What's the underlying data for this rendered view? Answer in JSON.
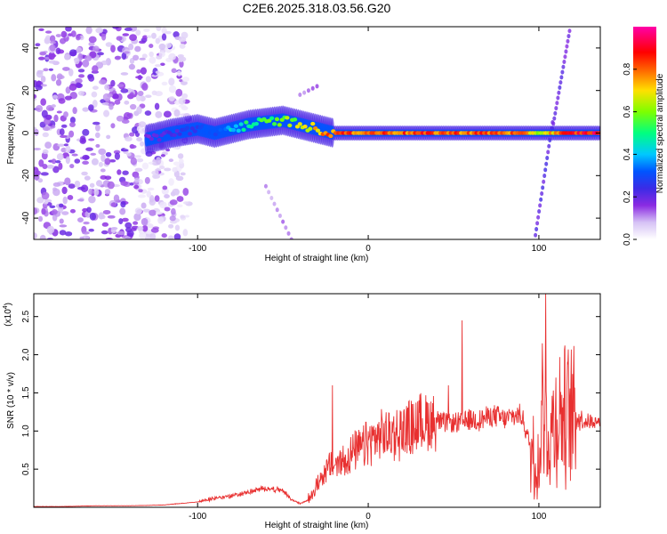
{
  "figure_title": "C2E6.2025.318.03.56.G20",
  "chart_data": [
    {
      "type": "heatmap",
      "title": "C2E6.2025.318.03.56.G20",
      "xlabel": "Height of straight line (km)",
      "ylabel": "Frequency (Hz)",
      "xlim": [
        -196,
        136
      ],
      "ylim": [
        -50,
        50
      ],
      "xticks": [
        -100,
        0,
        100
      ],
      "xtick_labels": [
        "-100",
        "0",
        "100"
      ],
      "yticks": [
        -40,
        -20,
        0,
        20,
        40
      ],
      "ytick_labels": [
        "-40",
        "-20",
        "0",
        "20",
        "40"
      ],
      "colorbar": {
        "label": "Normalized spectral amplitude",
        "range": [
          0,
          1
        ],
        "ticks": [
          0.0,
          0.2,
          0.4,
          0.6,
          0.8
        ],
        "tick_labels": [
          "0.0",
          "0.2",
          "0.4",
          "0.6",
          "0.8"
        ],
        "colors": [
          "#ffffff",
          "#c9b0f0",
          "#8a2be2",
          "#3b2be6",
          "#0055ff",
          "#00c8ff",
          "#00ff80",
          "#b0ff00",
          "#ffd000",
          "#ff4000",
          "#ff0000",
          "#ff00a0"
        ]
      },
      "ridge": {
        "x": [
          -130,
          -115,
          -100,
          -90,
          -80,
          -70,
          -60,
          -50,
          -40,
          -30,
          -20,
          0,
          20,
          40,
          60,
          80,
          95,
          100,
          110,
          120,
          136
        ],
        "frequency": [
          -3,
          0,
          2,
          0,
          2,
          4,
          5,
          6,
          4,
          2,
          0,
          0,
          0,
          0,
          0,
          0,
          0,
          0,
          0,
          0,
          0
        ],
        "amplitude": [
          0.2,
          0.25,
          0.3,
          0.35,
          0.45,
          0.55,
          0.6,
          0.65,
          0.7,
          0.8,
          0.9,
          0.9,
          0.9,
          0.9,
          0.9,
          0.9,
          0.8,
          0.7,
          0.85,
          0.95,
          1.0
        ]
      },
      "noise_region": {
        "x_range": [
          -196,
          -115
        ],
        "amplitude": 0.15
      }
    },
    {
      "type": "line",
      "xlabel": "Height of straight line (km)",
      "ylabel": "SNR (10 * v/v)",
      "scale_label": "(x10",
      "scale_exponent": "4",
      "xlim": [
        -196,
        136
      ],
      "ylim": [
        0,
        2.8
      ],
      "xticks": [
        -100,
        0,
        100
      ],
      "xtick_labels": [
        "-100",
        "0",
        "100"
      ],
      "yticks": [
        0.5,
        1.0,
        1.5,
        2.0,
        2.5
      ],
      "ytick_labels": [
        "0.5",
        "1.0",
        "1.5",
        "2.0",
        "2.5"
      ],
      "color": "#e83030",
      "series": [
        {
          "name": "SNR",
          "x": [
            -196,
            -180,
            -160,
            -140,
            -120,
            -100,
            -90,
            -80,
            -70,
            -60,
            -50,
            -45,
            -40,
            -35,
            -30,
            -25,
            -20,
            -15,
            -10,
            -5,
            0,
            5,
            10,
            15,
            20,
            25,
            30,
            35,
            40,
            45,
            50,
            55,
            60,
            65,
            70,
            75,
            80,
            85,
            90,
            95,
            100,
            103,
            106,
            110,
            115,
            120,
            125,
            130,
            136
          ],
          "y": [
            0.01,
            0.01,
            0.02,
            0.02,
            0.03,
            0.07,
            0.12,
            0.15,
            0.2,
            0.25,
            0.22,
            0.1,
            0.05,
            0.1,
            0.3,
            0.5,
            0.55,
            0.6,
            0.7,
            0.75,
            0.85,
            0.9,
            0.95,
            0.95,
            1.0,
            1.05,
            1.1,
            1.12,
            1.15,
            1.1,
            1.1,
            1.12,
            1.15,
            1.15,
            1.18,
            1.2,
            1.15,
            1.2,
            1.2,
            0.8,
            0.6,
            1.3,
            0.9,
            1.2,
            1.2,
            1.2,
            1.15,
            1.13,
            1.12
          ],
          "spikes": [
            {
              "x": -21,
              "y": 1.6
            },
            {
              "x": 47,
              "y": 1.6
            },
            {
              "x": 55,
              "y": 2.45
            },
            {
              "x": 102,
              "y": 2.15
            },
            {
              "x": 104,
              "y": 2.8
            },
            {
              "x": 110,
              "y": 1.7
            }
          ]
        }
      ]
    }
  ]
}
